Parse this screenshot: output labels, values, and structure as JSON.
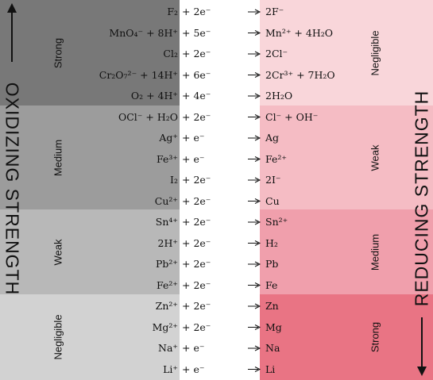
{
  "title_left": "OXIDIZING STRENGTH",
  "title_right": "REDUCING STRENGTH",
  "groups_left": [
    "Strong",
    "Medium",
    "Weak",
    "Negligible"
  ],
  "groups_right": [
    "Negligible",
    "Weak",
    "Medium",
    "Strong"
  ],
  "rows": [
    {
      "oxidant": "F₂",
      "electrons": "+ 2e⁻",
      "reductant": "2F⁻"
    },
    {
      "oxidant": "MnO₄⁻ + 8H⁺",
      "electrons": "+ 5e⁻",
      "reductant": "Mn²⁺ + 4H₂O"
    },
    {
      "oxidant": "Cl₂",
      "electrons": "+ 2e⁻",
      "reductant": "2Cl⁻"
    },
    {
      "oxidant": "Cr₂O₇²⁻ + 14H⁺",
      "electrons": "+ 6e⁻",
      "reductant": "2Cr³⁺ + 7H₂O"
    },
    {
      "oxidant": "O₂ + 4H⁺",
      "electrons": "+ 4e⁻",
      "reductant": "2H₂O"
    },
    {
      "oxidant": "OCl⁻ + H₂O",
      "electrons": "+ 2e⁻",
      "reductant": "Cl⁻ + OH⁻"
    },
    {
      "oxidant": "Ag⁺",
      "electrons": "+ e⁻",
      "reductant": "Ag"
    },
    {
      "oxidant": "Fe³⁺",
      "electrons": "+ e⁻",
      "reductant": "Fe²⁺"
    },
    {
      "oxidant": "I₂",
      "electrons": "+ 2e⁻",
      "reductant": "2I⁻"
    },
    {
      "oxidant": "Cu²⁺",
      "electrons": "+ 2e⁻",
      "reductant": "Cu"
    },
    {
      "oxidant": "Sn⁴⁺",
      "electrons": "+ 2e⁻",
      "reductant": "Sn²⁺"
    },
    {
      "oxidant": "2H⁺",
      "electrons": "+ 2e⁻",
      "reductant": "H₂"
    },
    {
      "oxidant": "Pb²⁺",
      "electrons": "+ 2e⁻",
      "reductant": "Pb"
    },
    {
      "oxidant": "Fe²⁺",
      "electrons": "+ 2e⁻",
      "reductant": "Fe"
    },
    {
      "oxidant": "Zn²⁺",
      "electrons": "+ 2e⁻",
      "reductant": "Zn"
    },
    {
      "oxidant": "Mg²⁺",
      "electrons": "+ 2e⁻",
      "reductant": "Mg"
    },
    {
      "oxidant": "Na⁺",
      "electrons": "+ e⁻",
      "reductant": "Na"
    },
    {
      "oxidant": "Li⁺",
      "electrons": "+ e⁻",
      "reductant": "Li"
    }
  ]
}
